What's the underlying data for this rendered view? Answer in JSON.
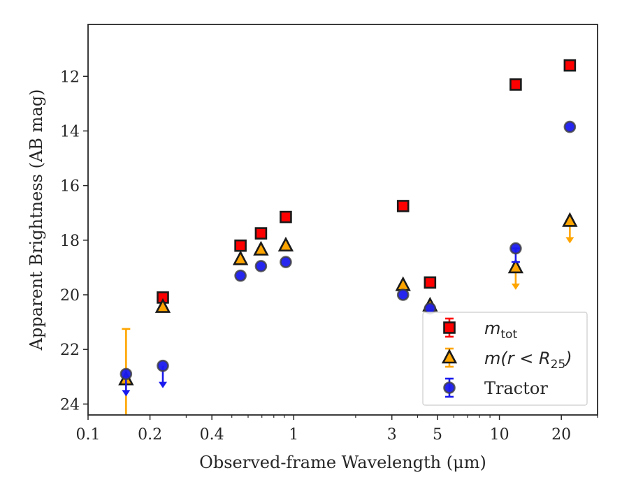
{
  "chart_data": {
    "type": "scatter",
    "xlabel": "Observed-frame Wavelength (μm)",
    "ylabel": "Apparent Brightness (AB mag)",
    "xscale": "log",
    "yaxis_inverted": true,
    "xlim": [
      0.1,
      30
    ],
    "ylim": [
      24.4,
      10.1
    ],
    "xticks": [
      {
        "value": 0.1,
        "label": "0.1"
      },
      {
        "value": 0.2,
        "label": "0.2"
      },
      {
        "value": 0.4,
        "label": "0.4"
      },
      {
        "value": 1,
        "label": "1"
      },
      {
        "value": 3,
        "label": "3"
      },
      {
        "value": 5,
        "label": "5"
      },
      {
        "value": 10,
        "label": "10"
      },
      {
        "value": 20,
        "label": "20"
      }
    ],
    "xminor": [
      0.3,
      0.5,
      0.6,
      0.7,
      0.8,
      0.9,
      2,
      4,
      6,
      7,
      8,
      9,
      30
    ],
    "yticks": [
      {
        "value": 12,
        "label": "12"
      },
      {
        "value": 14,
        "label": "14"
      },
      {
        "value": 16,
        "label": "16"
      },
      {
        "value": 18,
        "label": "18"
      },
      {
        "value": 20,
        "label": "20"
      },
      {
        "value": 22,
        "label": "22"
      },
      {
        "value": 24,
        "label": "24"
      }
    ],
    "legend_position": "lower-right",
    "series": [
      {
        "name": "m_tot",
        "name_base": "m",
        "name_sub": "tot",
        "marker": "square",
        "color": "#ff0000",
        "edge": "#1a1a1a",
        "points": [
          {
            "x": 0.231,
            "y": 20.1
          },
          {
            "x": 0.551,
            "y": 18.2
          },
          {
            "x": 0.693,
            "y": 17.75
          },
          {
            "x": 0.915,
            "y": 17.15
          },
          {
            "x": 3.4,
            "y": 16.75
          },
          {
            "x": 4.6,
            "y": 19.55
          },
          {
            "x": 12.0,
            "y": 12.3
          },
          {
            "x": 22.0,
            "y": 11.6
          }
        ]
      },
      {
        "name": "m(r < R25)",
        "name_base": "m(r < R",
        "name_sub": "25",
        "name_end": ")",
        "marker": "triangle",
        "color": "#ffa500",
        "edge": "#1a1a1a",
        "points": [
          {
            "x": 0.153,
            "y": 23.1,
            "err_up": 1.85,
            "err_low": 1.3
          },
          {
            "x": 0.231,
            "y": 20.45
          },
          {
            "x": 0.551,
            "y": 18.7
          },
          {
            "x": 0.693,
            "y": 18.35
          },
          {
            "x": 0.915,
            "y": 18.2
          },
          {
            "x": 3.4,
            "y": 19.65
          },
          {
            "x": 4.6,
            "y": 20.4
          },
          {
            "x": 12.0,
            "y": 19.0,
            "upper_limit": true
          },
          {
            "x": 22.0,
            "y": 17.3,
            "upper_limit": true
          }
        ]
      },
      {
        "name": "Tractor",
        "marker": "circle",
        "color": "#1a1aee",
        "edge": "#404040",
        "points": [
          {
            "x": 0.153,
            "y": 22.9,
            "upper_limit": true
          },
          {
            "x": 0.231,
            "y": 22.6,
            "upper_limit": true
          },
          {
            "x": 0.551,
            "y": 19.3
          },
          {
            "x": 0.693,
            "y": 18.95
          },
          {
            "x": 0.915,
            "y": 18.8
          },
          {
            "x": 3.4,
            "y": 20.0
          },
          {
            "x": 4.6,
            "y": 20.5
          },
          {
            "x": 12.0,
            "y": 18.3,
            "err_low": 0.5
          },
          {
            "x": 22.0,
            "y": 13.85
          }
        ]
      }
    ]
  }
}
